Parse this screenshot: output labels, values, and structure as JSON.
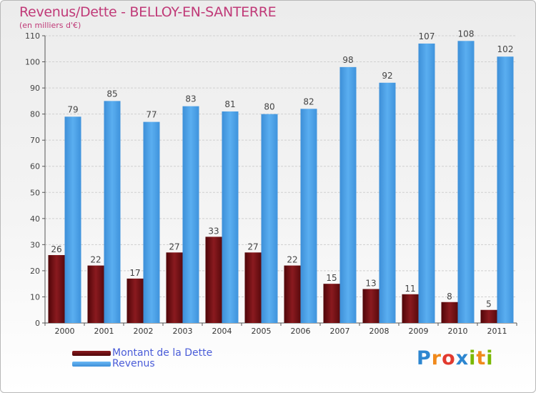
{
  "header": {
    "title": "Revenus/Dette - BELLOY-EN-SANTERRE",
    "subtitle": "(en milliers d'€)"
  },
  "legend": [
    {
      "label": "Montant de la Dette",
      "color": "#6e0b10"
    },
    {
      "label": "Revenus",
      "color": "#4a9fe6"
    }
  ],
  "logo": {
    "text": "Proxiti",
    "letters": [
      {
        "char": "P",
        "color": "#2d86d0"
      },
      {
        "char": "r",
        "color": "#f08a1c"
      },
      {
        "char": "o",
        "color": "#e23a2f"
      },
      {
        "char": "x",
        "color": "#2d86d0"
      },
      {
        "char": "i",
        "color": "#7ab800"
      },
      {
        "char": "t",
        "color": "#f08a1c"
      },
      {
        "char": "i",
        "color": "#7ab800"
      }
    ]
  },
  "chart_data": {
    "type": "bar",
    "title": "Revenus/Dette - BELLOY-EN-SANTERRE",
    "subtitle": "(en milliers d'€)",
    "categories": [
      "2000",
      "2001",
      "2002",
      "2003",
      "2004",
      "2005",
      "2006",
      "2007",
      "2008",
      "2009",
      "2010",
      "2011"
    ],
    "series": [
      {
        "name": "Montant de la Dette",
        "color": "#6e0b10",
        "values": [
          26,
          22,
          17,
          27,
          33,
          27,
          22,
          15,
          13,
          11,
          8,
          5
        ]
      },
      {
        "name": "Revenus",
        "color": "#4a9fe6",
        "values": [
          79,
          85,
          77,
          83,
          81,
          80,
          82,
          98,
          92,
          107,
          108,
          102
        ]
      }
    ],
    "ylim": [
      0,
      110
    ],
    "yticks": [
      0,
      10,
      20,
      30,
      40,
      50,
      60,
      70,
      80,
      90,
      100,
      110
    ],
    "grid": true,
    "legend_position": "bottom-left"
  }
}
